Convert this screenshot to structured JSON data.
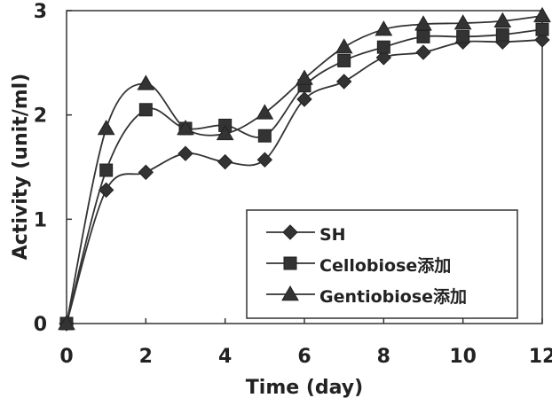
{
  "chart_data": {
    "type": "line",
    "xlabel": "Time (day)",
    "ylabel": "Activity (unit/ml)",
    "xlim": [
      0,
      12
    ],
    "ylim": [
      0,
      3
    ],
    "xticks": [
      "0",
      "2",
      "4",
      "6",
      "8",
      "10",
      "12"
    ],
    "yticks": [
      "0",
      "1",
      "2",
      "3"
    ],
    "grid": false,
    "legend_position": "bottom-right",
    "x": [
      0,
      1,
      2,
      3,
      4,
      5,
      6,
      7,
      8,
      9,
      10,
      11,
      12
    ],
    "series": [
      {
        "name": "SH",
        "marker": "diamond",
        "values": [
          0,
          1.28,
          1.45,
          1.63,
          1.55,
          1.57,
          2.15,
          2.32,
          2.55,
          2.6,
          2.7,
          2.7,
          2.72
        ]
      },
      {
        "name": "Cellobiose添加",
        "marker": "square",
        "values": [
          0,
          1.47,
          2.05,
          1.87,
          1.9,
          1.8,
          2.28,
          2.52,
          2.65,
          2.75,
          2.75,
          2.77,
          2.82
        ]
      },
      {
        "name": "Gentiobiose添加",
        "marker": "triangle",
        "values": [
          0,
          1.87,
          2.3,
          1.87,
          1.82,
          2.02,
          2.35,
          2.65,
          2.82,
          2.87,
          2.88,
          2.9,
          2.95
        ]
      }
    ]
  }
}
